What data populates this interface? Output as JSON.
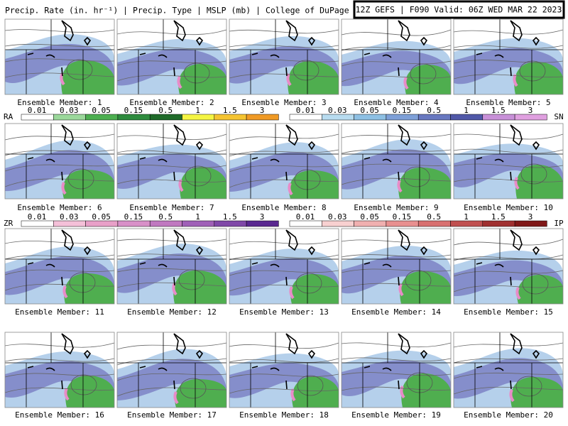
{
  "header": {
    "title": "Precip. Rate (in. hr⁻¹) | Precip. Type | MSLP (mb) | College of DuPage NEXLAB",
    "valid": "12Z GEFS | F090 Valid: 06Z WED MAR 22 2023"
  },
  "panels": [
    {
      "label": "Ensemble Member: 1"
    },
    {
      "label": "Ensemble Member: 2"
    },
    {
      "label": "Ensemble Member: 3"
    },
    {
      "label": "Ensemble Member: 4"
    },
    {
      "label": "Ensemble Member: 5"
    },
    {
      "label": "Ensemble Member: 6"
    },
    {
      "label": "Ensemble Member: 7"
    },
    {
      "label": "Ensemble Member: 8"
    },
    {
      "label": "Ensemble Member: 9"
    },
    {
      "label": "Ensemble Member: 10"
    },
    {
      "label": "Ensemble Member: 11"
    },
    {
      "label": "Ensemble Member: 12"
    },
    {
      "label": "Ensemble Member: 13"
    },
    {
      "label": "Ensemble Member: 14"
    },
    {
      "label": "Ensemble Member: 15"
    },
    {
      "label": "Ensemble Member: 16"
    },
    {
      "label": "Ensemble Member: 17"
    },
    {
      "label": "Ensemble Member: 18"
    },
    {
      "label": "Ensemble Member: 19"
    },
    {
      "label": "Ensemble Member: 20"
    }
  ],
  "legends": [
    {
      "type": "RA",
      "ticks": [
        "0.01",
        "0.03",
        "0.05",
        "0.15",
        "0.5",
        "1",
        "1.5",
        "3"
      ]
    },
    {
      "type": "SN",
      "ticks": [
        "0.01",
        "0.03",
        "0.05",
        "0.15",
        "0.5",
        "1",
        "1.5",
        "3"
      ]
    },
    {
      "type": "ZR",
      "ticks": [
        "0.01",
        "0.03",
        "0.05",
        "0.15",
        "0.5",
        "1",
        "1.5",
        "3"
      ]
    },
    {
      "type": "IP",
      "ticks": [
        "0.01",
        "0.03",
        "0.05",
        "0.15",
        "0.5",
        "1",
        "1.5",
        "3"
      ]
    }
  ]
}
